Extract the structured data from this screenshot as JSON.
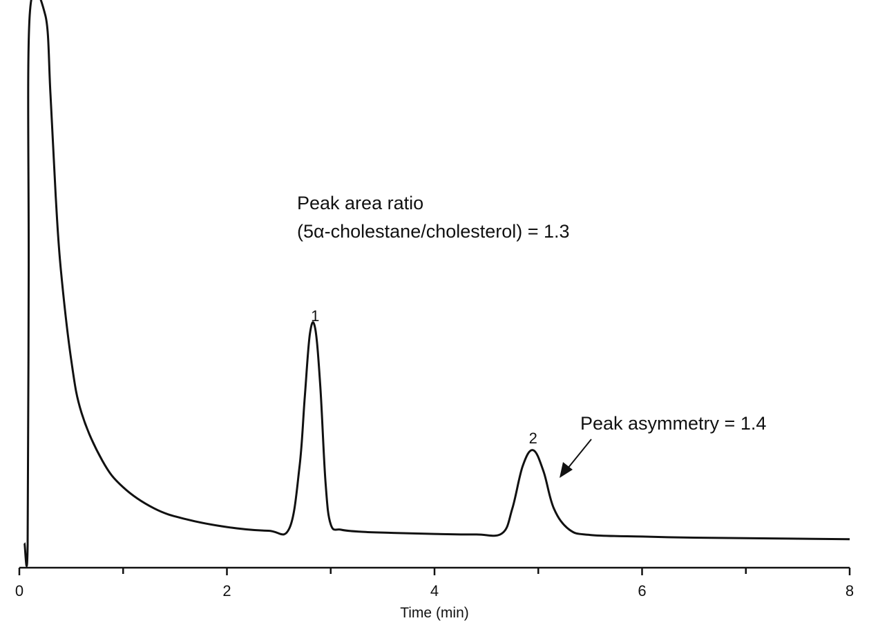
{
  "chart_data": {
    "type": "line",
    "title": "",
    "xlabel": "Time (min)",
    "ylabel": "",
    "xlim": [
      0,
      8
    ],
    "x_ticks": [
      0,
      2,
      4,
      6,
      8
    ],
    "x_minor_ticks": [
      1,
      3,
      5,
      7
    ],
    "grid": false,
    "series": [
      {
        "x": [
          0.05,
          0.08,
          0.09,
          0.1,
          0.25,
          0.3,
          0.35,
          0.4,
          0.5,
          0.6,
          0.8,
          1.0,
          1.3,
          1.6,
          2.0,
          2.4,
          2.6,
          2.7,
          2.75,
          2.8,
          2.85,
          2.9,
          2.95,
          3.0,
          3.1,
          3.3,
          3.6,
          4.0,
          4.4,
          4.65,
          4.75,
          4.85,
          4.95,
          5.05,
          5.15,
          5.3,
          5.5,
          6.0,
          6.5,
          7.0,
          7.5,
          8.0
        ],
        "y": [
          0.005,
          0.0,
          0.5,
          1.0,
          1.0,
          0.85,
          0.66,
          0.52,
          0.35,
          0.25,
          0.16,
          0.11,
          0.07,
          0.05,
          0.035,
          0.028,
          0.032,
          0.15,
          0.28,
          0.4,
          0.41,
          0.3,
          0.12,
          0.04,
          0.03,
          0.026,
          0.024,
          0.022,
          0.021,
          0.023,
          0.07,
          0.15,
          0.18,
          0.14,
          0.07,
          0.03,
          0.02,
          0.017,
          0.015,
          0.014,
          0.013,
          0.012
        ]
      }
    ],
    "peaks": [
      {
        "label": "1",
        "x": 2.85,
        "y": 0.41
      },
      {
        "label": "2",
        "x": 4.95,
        "y": 0.18
      }
    ],
    "annotations": {
      "area_ratio_line1": "Peak area ratio",
      "area_ratio_line2": "(5α-cholestane/cholesterol) = 1.3",
      "asymmetry": "Peak asymmetry = 1.4"
    }
  }
}
